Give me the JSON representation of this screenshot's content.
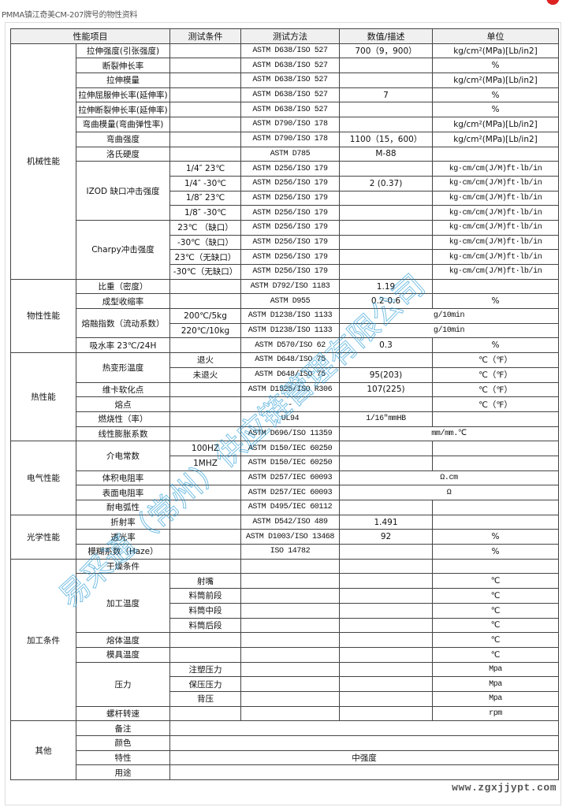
{
  "title": "PMMA镇江奇美CM-207牌号的物性资料",
  "watermark": "易采通（常州）供应链管理有限公司",
  "site_watermark": "www.zgxjjypt.com",
  "colors": {
    "header_bg": "#f0f0f0",
    "border": "#444444",
    "watermark": "#28b4e6"
  },
  "table": {
    "headers": [
      {
        "t": "性能项目",
        "cs": 2
      },
      "测试条件",
      "测试方法",
      "数值/描述",
      "单位"
    ],
    "rows": [
      [
        {
          "t": "机械性能",
          "rs": 16
        },
        "拉伸强度(引张强度)",
        "",
        "ASTM D638/ISO 527",
        "700（9，900）",
        "kg/cm²(MPa)[Lb/in2]"
      ],
      [
        "断裂伸长率",
        "",
        "ASTM D638/ISO 527",
        "",
        "%"
      ],
      [
        "拉伸模量",
        "",
        "ASTM D638/ISO 527",
        "",
        "kg/cm²(MPa)[Lb/in2]"
      ],
      [
        "拉伸屈服伸长率(延伸率)",
        "",
        "ASTM D638/ISO 527",
        "7",
        "%"
      ],
      [
        "拉伸断裂伸长率(延伸率)",
        "",
        "ASTM D638/ISO 527",
        "",
        "%"
      ],
      [
        "弯曲模量(弯曲弹性率)",
        "",
        "ASTM D790/ISO 178",
        "",
        "kg/cm²(MPa)[Lb/in2]"
      ],
      [
        "弯曲强度",
        "",
        "ASTM D790/ISO 178",
        "1100（15，600）",
        "kg/cm²(MPa)[Lb/in2]"
      ],
      [
        "洛氏硬度",
        "",
        "ASTM D785",
        "M-88",
        ""
      ],
      [
        {
          "t": "IZOD 缺口冲击强度",
          "rs": 4
        },
        "1/4″ 23℃",
        "ASTM D256/ISO 179",
        "",
        "kg·cm/cm(J/M)ft·lb/in"
      ],
      [
        "1/4″ -30℃",
        "ASTM D256/ISO 179",
        "2 (0.37)",
        "kg·cm/cm(J/M)ft·lb/in"
      ],
      [
        "1/8″ 23℃",
        "ASTM D256/ISO 179",
        "",
        "kg·cm/cm(J/M)ft·lb/in"
      ],
      [
        "1/8″ -30℃",
        "ASTM D256/ISO 179",
        "",
        "kg·cm/cm(J/M)ft·lb/in"
      ],
      [
        {
          "t": "Charpy冲击强度",
          "rs": 4
        },
        "23℃ （缺口）",
        "ASTM D256/ISO 179",
        "",
        "kg·cm/cm(J/M)ft·lb/in"
      ],
      [
        "-30℃（缺口）",
        "ASTM D256/ISO 179",
        "",
        "kg·cm/cm(J/M)ft·lb/in"
      ],
      [
        "23℃（无缺口）",
        "ASTM D256/ISO 179",
        "",
        "kg·cm/cm(J/M)ft·lb/in"
      ],
      [
        "-30℃（无缺口）",
        "ASTM D256/ISO 179",
        "",
        "kg·cm/cm(J/M)ft·lb/in"
      ],
      [
        {
          "t": "物性性能",
          "rs": 5
        },
        "比重（密度）",
        "",
        "ASTM D792/ISO 1183",
        "1.19",
        ""
      ],
      [
        "成型收缩率",
        "",
        "ASTM D955",
        "0.2-0.6",
        "%"
      ],
      [
        {
          "t": "熔融指数（流动系数）",
          "rs": 2
        },
        "200℃/5kg",
        "ASTM D1238/ISO 1133",
        {
          "t": "g/10min",
          "cs": 2
        }
      ],
      [
        "220℃/10kg",
        "ASTM D1238/ISO 1133",
        {
          "t": "g/10min",
          "cs": 2
        }
      ],
      [
        "吸水率 23℃/24H",
        "",
        "ASTM D570/ISO 62",
        "0.3",
        "%"
      ],
      [
        {
          "t": "热性能",
          "rs": 6
        },
        {
          "t": "热变形温度",
          "rs": 2
        },
        "退火",
        "ASTM D648/ISO 75",
        "",
        "℃（℉）"
      ],
      [
        "未退火",
        "ASTM D648/ISO 75",
        "95(203)",
        "℃（℉）"
      ],
      [
        "维卡软化点",
        "",
        "ASTM D1525/ISO R306",
        "107(225)",
        "℃（℉）"
      ],
      [
        "熔点",
        "",
        "-",
        "",
        "℃（℉）"
      ],
      [
        "燃烧性（率）",
        "",
        "UL94",
        "1/16″mmHB",
        ""
      ],
      [
        "线性膨胀系数",
        "",
        "ASTM D696/ISO 11359",
        {
          "t": "mm/mm.℃",
          "cs": 2
        }
      ],
      [
        {
          "t": "电气性能",
          "rs": 5
        },
        {
          "t": "介电常数",
          "rs": 2
        },
        "100HZ",
        "ASTM D150/IEC 60250",
        "",
        ""
      ],
      [
        "1MHZ",
        "ASTM D150/IEC 60250",
        "",
        ""
      ],
      [
        "体积电阻率",
        "",
        "ASTM D257/IEC 60093",
        {
          "t": "Ω.cm",
          "cs": 2
        }
      ],
      [
        "表面电阻率",
        "",
        "ASTM D257/IEC 60093",
        {
          "t": "Ω",
          "cs": 2
        }
      ],
      [
        "耐电弧性",
        "",
        "ASTM D495/IEC 60112",
        "",
        ""
      ],
      [
        {
          "t": "光学性能",
          "rs": 3
        },
        "折射率",
        "",
        "ASTM D542/ISO 489",
        "1.491",
        ""
      ],
      [
        "透光率",
        "",
        "ASTM D1003/ISO 13468",
        "92",
        "%"
      ],
      [
        "模糊系数（Haze）",
        "",
        "ISO 14782",
        "",
        "%"
      ],
      [
        {
          "t": "加工条件",
          "rs": 11
        },
        "干燥条件",
        "",
        "",
        "",
        ""
      ],
      [
        {
          "t": "加工温度",
          "rs": 4
        },
        "射嘴",
        "",
        "",
        "℃"
      ],
      [
        "料筒前段",
        "",
        "",
        "℃"
      ],
      [
        "料筒中段",
        "",
        "",
        "℃"
      ],
      [
        "料筒后段",
        "",
        "",
        "℃"
      ],
      [
        "熔体温度",
        "",
        "",
        "",
        "℃"
      ],
      [
        "模具温度",
        "",
        "",
        "",
        "℃"
      ],
      [
        {
          "t": "压力",
          "rs": 3
        },
        "注塑压力",
        "",
        "",
        "Mpa"
      ],
      [
        "保压压力",
        "",
        "",
        "Mpa"
      ],
      [
        "背压",
        "",
        "",
        "Mpa"
      ],
      [
        "螺杆转速",
        "",
        "",
        "",
        "rpm"
      ],
      [
        {
          "t": "其他",
          "rs": 4
        },
        "备注",
        {
          "t": "",
          "cs": 4
        }
      ],
      [
        "颜色",
        {
          "t": "",
          "cs": 4
        }
      ],
      [
        "特性",
        {
          "t": "中强度",
          "cs": 4
        }
      ],
      [
        "用途",
        {
          "t": "",
          "cs": 4
        }
      ]
    ]
  }
}
